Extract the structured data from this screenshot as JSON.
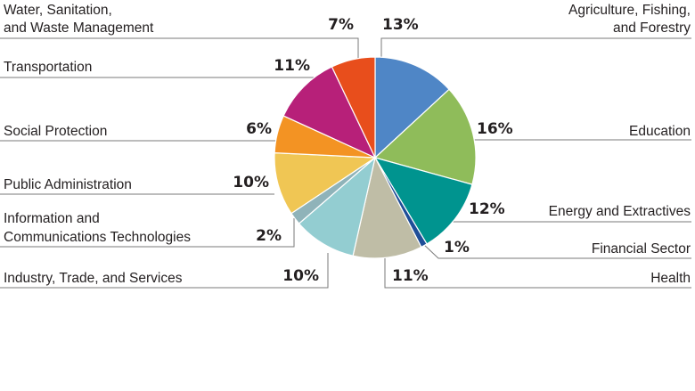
{
  "chart_data": {
    "type": "pie",
    "title": "",
    "start": "12 o'clock",
    "direction": "clockwise",
    "slices": [
      {
        "name": [
          "Agriculture, Fishing,",
          "and Forestry"
        ],
        "value": 13,
        "label": "13%",
        "color": "#4f86c6"
      },
      {
        "name": [
          "Education"
        ],
        "value": 16,
        "label": "16%",
        "color": "#8fbc5a"
      },
      {
        "name": [
          "Energy and Extractives"
        ],
        "value": 12,
        "label": "12%",
        "color": "#00948f"
      },
      {
        "name": [
          "Financial Sector"
        ],
        "value": 1,
        "label": "1%",
        "color": "#1f4e98"
      },
      {
        "name": [
          "Health"
        ],
        "value": 11,
        "label": "11%",
        "color": "#bfbda6"
      },
      {
        "name": [
          "Industry, Trade, and Services"
        ],
        "value": 10,
        "label": "10%",
        "color": "#93cdd1"
      },
      {
        "name": [
          "Information and",
          "Communications Technologies"
        ],
        "value": 2,
        "label": "2%",
        "color": "#8fb3b9"
      },
      {
        "name": [
          "Public Administration"
        ],
        "value": 10,
        "label": "10%",
        "color": "#f0c654"
      },
      {
        "name": [
          "Social Protection"
        ],
        "value": 6,
        "label": "6%",
        "color": "#f39323"
      },
      {
        "name": [
          "Transportation"
        ],
        "value": 11,
        "label": "11%",
        "color": "#b72079"
      },
      {
        "name": [
          "Water, Sanitation,",
          "and Waste Management"
        ],
        "value": 7,
        "label": "7%",
        "color": "#e84e1c"
      }
    ]
  }
}
